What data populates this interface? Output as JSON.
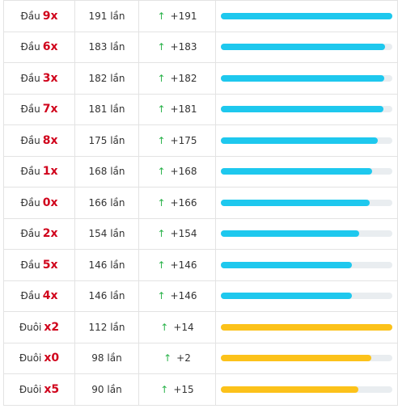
{
  "colors": {
    "key_text": "#d0021b",
    "arrow_up": "#2bb34b",
    "bar_dau": "#1ec8ee",
    "bar_duoi": "#fcc21a",
    "bar_track": "#e9edf0"
  },
  "rows": [
    {
      "prefix": "Đầu",
      "key": "9x",
      "count": "191 lần",
      "change": "+191",
      "progress": 1.0,
      "group": "dau"
    },
    {
      "prefix": "Đầu",
      "key": "6x",
      "count": "183 lần",
      "change": "+183",
      "progress": 0.958,
      "group": "dau"
    },
    {
      "prefix": "Đầu",
      "key": "3x",
      "count": "182 lần",
      "change": "+182",
      "progress": 0.953,
      "group": "dau"
    },
    {
      "prefix": "Đầu",
      "key": "7x",
      "count": "181 lần",
      "change": "+181",
      "progress": 0.948,
      "group": "dau"
    },
    {
      "prefix": "Đầu",
      "key": "8x",
      "count": "175 lần",
      "change": "+175",
      "progress": 0.916,
      "group": "dau"
    },
    {
      "prefix": "Đầu",
      "key": "1x",
      "count": "168 lần",
      "change": "+168",
      "progress": 0.88,
      "group": "dau"
    },
    {
      "prefix": "Đầu",
      "key": "0x",
      "count": "166 lần",
      "change": "+166",
      "progress": 0.869,
      "group": "dau"
    },
    {
      "prefix": "Đầu",
      "key": "2x",
      "count": "154 lần",
      "change": "+154",
      "progress": 0.806,
      "group": "dau"
    },
    {
      "prefix": "Đầu",
      "key": "5x",
      "count": "146 lần",
      "change": "+146",
      "progress": 0.764,
      "group": "dau"
    },
    {
      "prefix": "Đầu",
      "key": "4x",
      "count": "146 lần",
      "change": "+146",
      "progress": 0.764,
      "group": "dau"
    },
    {
      "prefix": "Đuôi",
      "key": "x2",
      "count": "112 lần",
      "change": "+14",
      "progress": 1.0,
      "group": "duoi"
    },
    {
      "prefix": "Đuôi",
      "key": "x0",
      "count": "98 lần",
      "change": "+2",
      "progress": 0.875,
      "group": "duoi"
    },
    {
      "prefix": "Đuôi",
      "key": "x5",
      "count": "90 lần",
      "change": "+15",
      "progress": 0.804,
      "group": "duoi"
    }
  ],
  "arrow_glyph": "↑"
}
